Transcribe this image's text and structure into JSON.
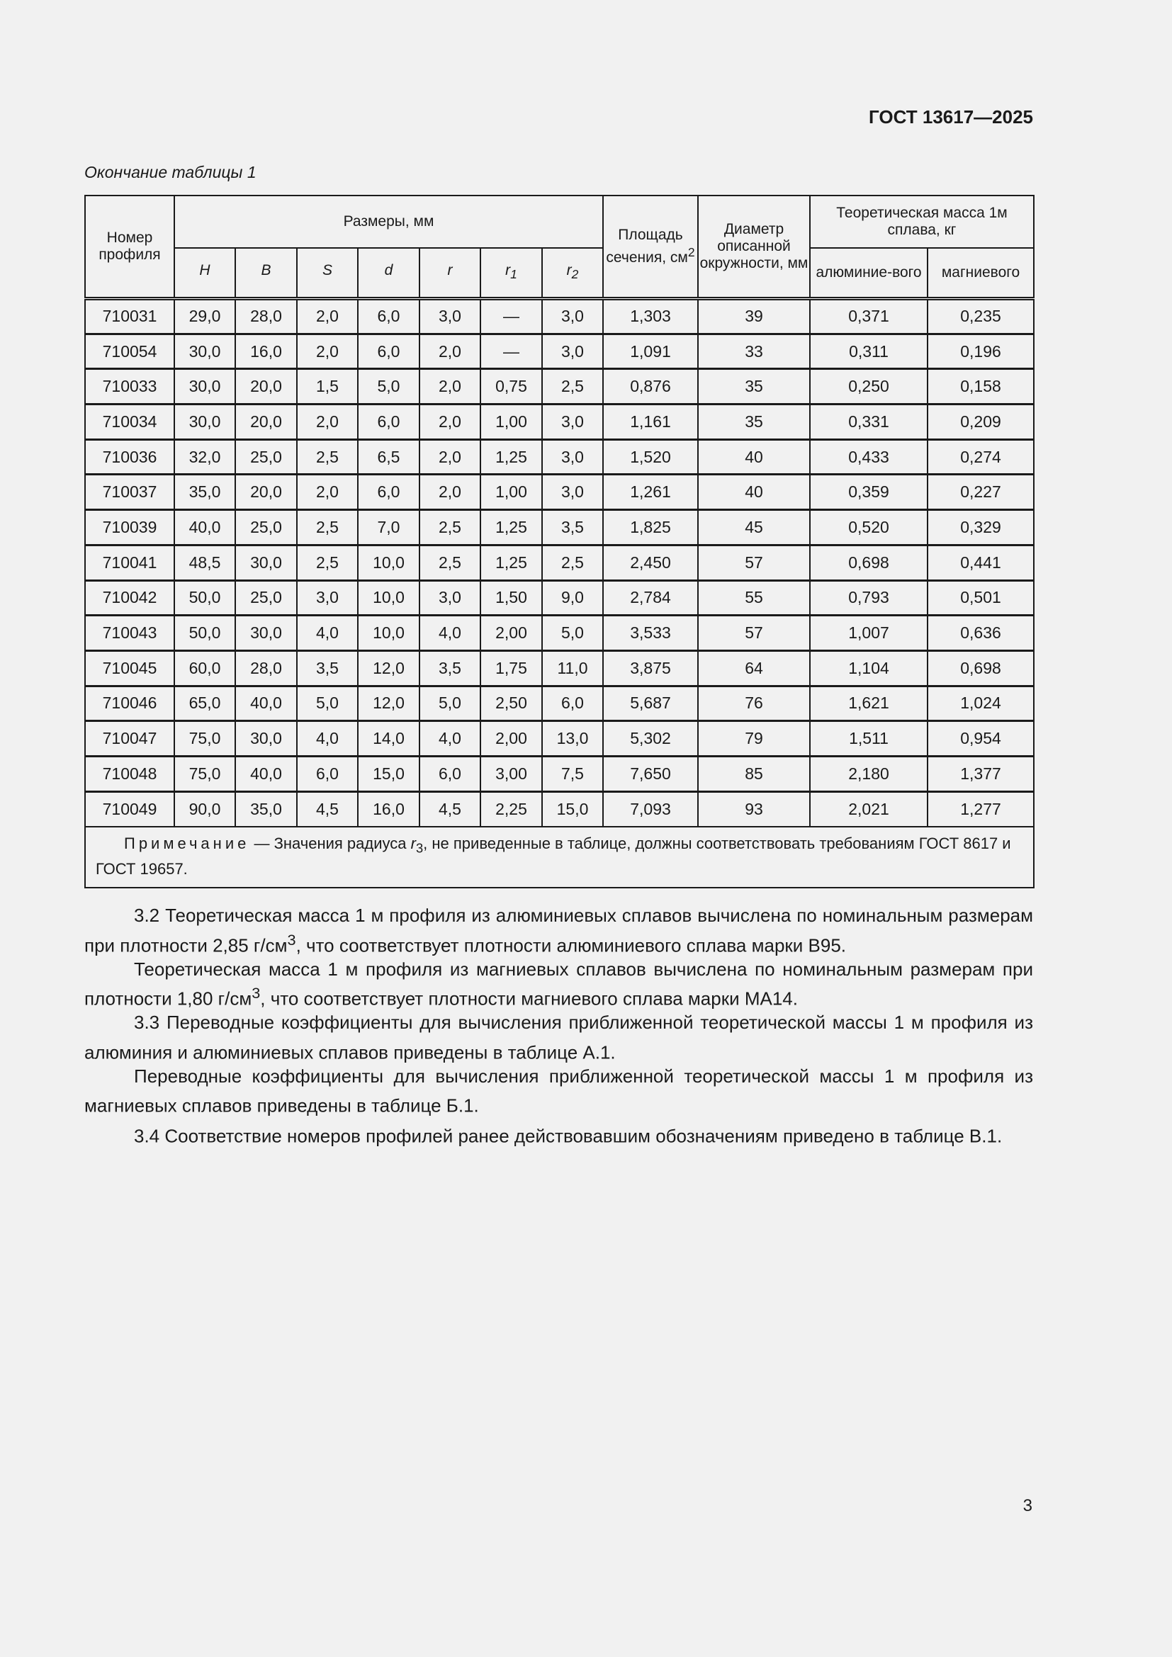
{
  "header": {
    "standard": "ГОСТ 13617—2025"
  },
  "caption": "Окончание таблицы 1",
  "table": {
    "headers": {
      "profile_no": "Номер профиля",
      "dimensions": "Размеры, мм",
      "dims": [
        "H",
        "B",
        "S",
        "d",
        "r",
        "r",
        "r"
      ],
      "dim_subs": [
        "",
        "",
        "",
        "",
        "",
        "1",
        "2"
      ],
      "area": "Площадь сечения, см",
      "area_sup": "2",
      "diameter": "Диаметр описанной окружности, мм",
      "mass": "Теоретическая масса 1м сплава, кг",
      "mass_al": "алюминие-вого",
      "mass_mg": "магниевого"
    },
    "rows": [
      [
        "710031",
        "29,0",
        "28,0",
        "2,0",
        "6,0",
        "3,0",
        "—",
        "3,0",
        "1,303",
        "39",
        "0,371",
        "0,235"
      ],
      [
        "710054",
        "30,0",
        "16,0",
        "2,0",
        "6,0",
        "2,0",
        "—",
        "3,0",
        "1,091",
        "33",
        "0,311",
        "0,196"
      ],
      [
        "710033",
        "30,0",
        "20,0",
        "1,5",
        "5,0",
        "2,0",
        "0,75",
        "2,5",
        "0,876",
        "35",
        "0,250",
        "0,158"
      ],
      [
        "710034",
        "30,0",
        "20,0",
        "2,0",
        "6,0",
        "2,0",
        "1,00",
        "3,0",
        "1,161",
        "35",
        "0,331",
        "0,209"
      ],
      [
        "710036",
        "32,0",
        "25,0",
        "2,5",
        "6,5",
        "2,0",
        "1,25",
        "3,0",
        "1,520",
        "40",
        "0,433",
        "0,274"
      ],
      [
        "710037",
        "35,0",
        "20,0",
        "2,0",
        "6,0",
        "2,0",
        "1,00",
        "3,0",
        "1,261",
        "40",
        "0,359",
        "0,227"
      ],
      [
        "710039",
        "40,0",
        "25,0",
        "2,5",
        "7,0",
        "2,5",
        "1,25",
        "3,5",
        "1,825",
        "45",
        "0,520",
        "0,329"
      ],
      [
        "710041",
        "48,5",
        "30,0",
        "2,5",
        "10,0",
        "2,5",
        "1,25",
        "2,5",
        "2,450",
        "57",
        "0,698",
        "0,441"
      ],
      [
        "710042",
        "50,0",
        "25,0",
        "3,0",
        "10,0",
        "3,0",
        "1,50",
        "9,0",
        "2,784",
        "55",
        "0,793",
        "0,501"
      ],
      [
        "710043",
        "50,0",
        "30,0",
        "4,0",
        "10,0",
        "4,0",
        "2,00",
        "5,0",
        "3,533",
        "57",
        "1,007",
        "0,636"
      ],
      [
        "710045",
        "60,0",
        "28,0",
        "3,5",
        "12,0",
        "3,5",
        "1,75",
        "11,0",
        "3,875",
        "64",
        "1,104",
        "0,698"
      ],
      [
        "710046",
        "65,0",
        "40,0",
        "5,0",
        "12,0",
        "5,0",
        "2,50",
        "6,0",
        "5,687",
        "76",
        "1,621",
        "1,024"
      ],
      [
        "710047",
        "75,0",
        "30,0",
        "4,0",
        "14,0",
        "4,0",
        "2,00",
        "13,0",
        "5,302",
        "79",
        "1,511",
        "0,954"
      ],
      [
        "710048",
        "75,0",
        "40,0",
        "6,0",
        "15,0",
        "6,0",
        "3,00",
        "7,5",
        "7,650",
        "85",
        "2,180",
        "1,377"
      ],
      [
        "710049",
        "90,0",
        "35,0",
        "4,5",
        "16,0",
        "4,5",
        "2,25",
        "15,0",
        "7,093",
        "93",
        "2,021",
        "1,277"
      ]
    ],
    "note": {
      "label": "Примечание",
      "text_before": " — Значения радиуса ",
      "var": "r",
      "sub": "3",
      "text_after": ", не приведенные в таблице, должны соответствовать требованиям ГОСТ 8617 и ГОСТ 19657."
    }
  },
  "paragraphs": [
    {
      "a": "3.2  Теоретическая масса 1 м профиля из алюминиевых сплавов вычислена по номинальным размерам при плотности 2,85 г/см",
      "sup": "3",
      "b": ", что соответствует плотности алюминиевого сплава марки В95."
    },
    {
      "a": "Теоретическая масса 1 м профиля из магниевых сплавов вычислена по номинальным размерам при плотности 1,80 г/см",
      "sup": "3",
      "b": ", что соответствует плотности магниевого сплава марки МА14."
    },
    {
      "a": "3.3  Переводные коэффициенты для вычисления приближенной теоретической массы 1 м профиля из алюминия и алюминиевых сплавов приведены в таблице А.1.",
      "sup": "",
      "b": ""
    },
    {
      "a": "Переводные коэффициенты для вычисления приближенной теоретической массы 1 м профиля из магниевых сплавов приведены в таблице Б.1.",
      "sup": "",
      "b": ""
    },
    {
      "a": "3.4 Соответствие номеров профилей ранее действовавшим обозначениям приведено в таблице В.1.",
      "sup": "",
      "b": ""
    }
  ],
  "page_number": "3"
}
